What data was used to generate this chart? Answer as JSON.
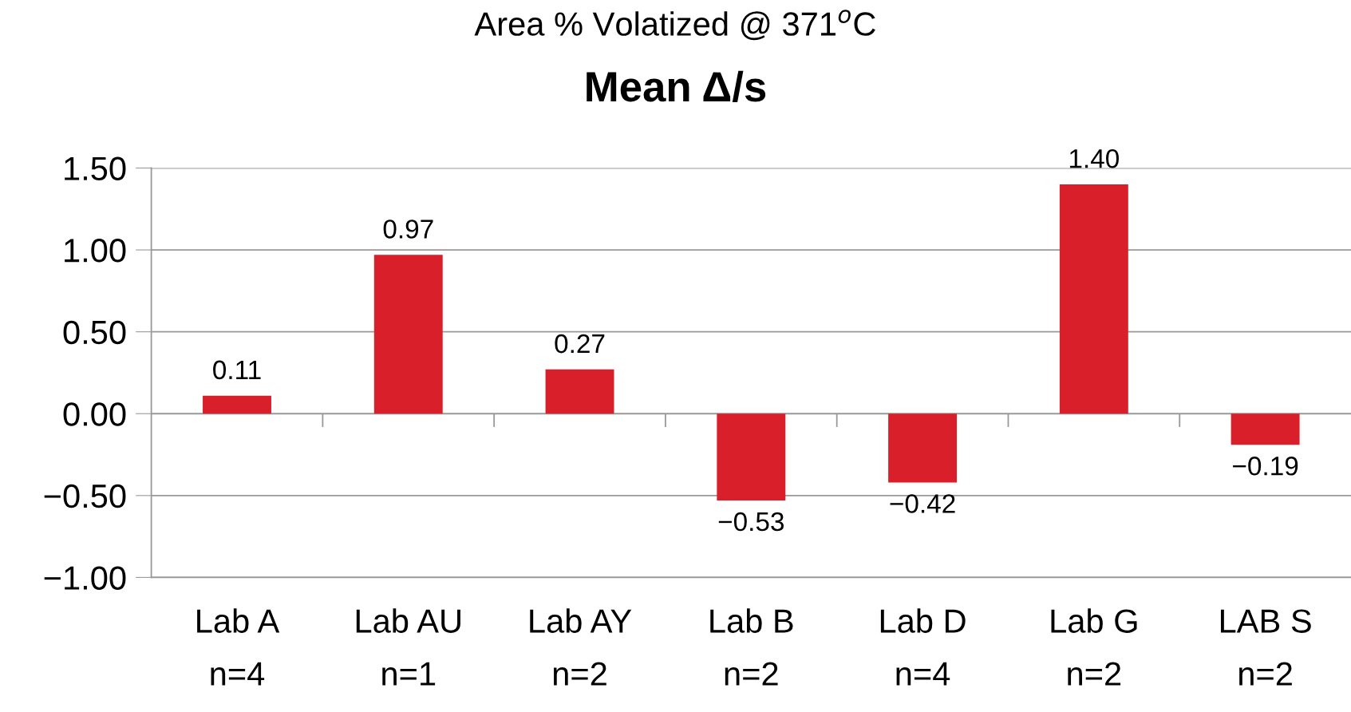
{
  "chart_data": {
    "type": "bar",
    "title": "Area % Volatized @ 371$^{o}$C",
    "subtitle": "Mean Δ/s",
    "categories": [
      "Lab A\nn=4",
      "Lab AU\nn=1",
      "Lab AY\nn=2",
      "Lab B\nn=2",
      "Lab D\nn=4",
      "Lab G\nn=2",
      "LAB S\nn=2"
    ],
    "values": [
      0.11,
      0.97,
      0.27,
      -0.53,
      -0.42,
      1.4,
      -0.19
    ],
    "value_labels": [
      "0.11",
      "0.97",
      "0.27",
      "−0.53",
      "−0.42",
      "1.40",
      "−0.19"
    ],
    "color": "#d9202a",
    "ylim": [
      -1.0,
      1.5
    ],
    "yticks": [
      {
        "value": -1.0,
        "label": "−1.00"
      },
      {
        "value": -0.5,
        "label": "−0.50"
      },
      {
        "value": 0.0,
        "label": "0.00"
      },
      {
        "value": 0.5,
        "label": "0.50"
      },
      {
        "value": 1.0,
        "label": "1.00"
      },
      {
        "value": 1.5,
        "label": "1.50"
      }
    ],
    "grid": "y"
  }
}
